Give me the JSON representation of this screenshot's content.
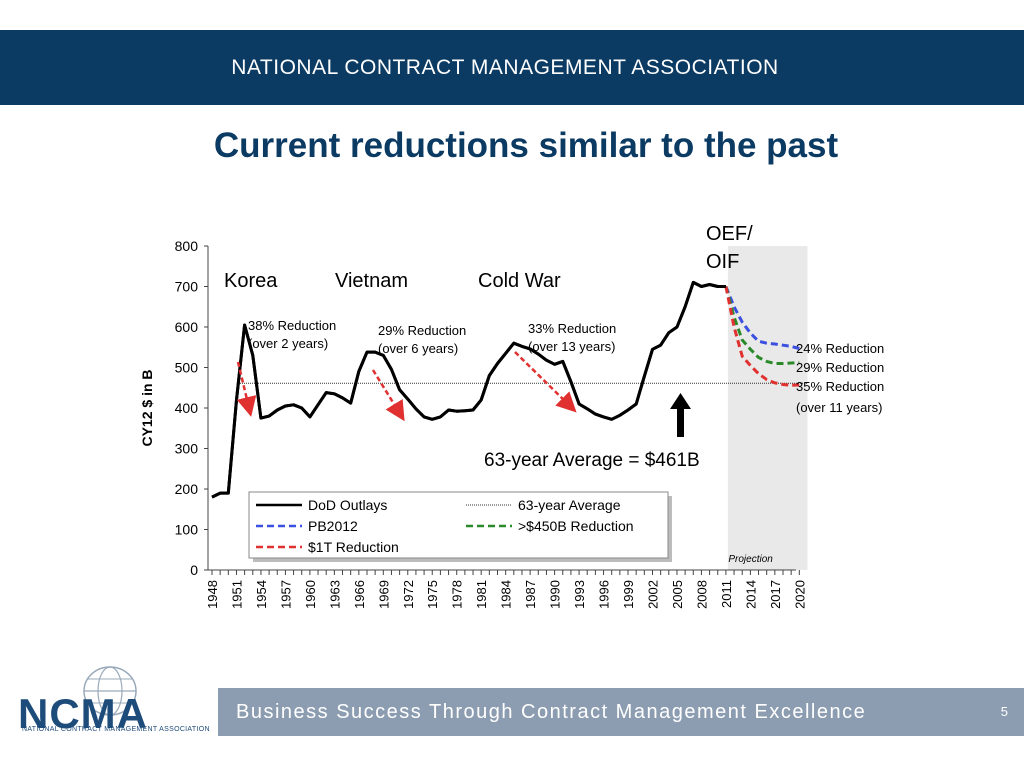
{
  "header": {
    "title": "NATIONAL CONTRACT MANAGEMENT ASSOCIATION"
  },
  "slide": {
    "title": "Current reductions similar to the past"
  },
  "footer": {
    "tagline": "Business Success Through Contract Management Excellence",
    "page_number": "5"
  },
  "logo": {
    "text": "NCMA",
    "subtitle": "NATIONAL CONTRACT MANAGEMENT ASSOCIATION"
  },
  "colors": {
    "brand_navy": "#0b3a63",
    "footer_gray": "#8d9db1",
    "dod": "#000000",
    "pb2012": "#3b4fe0",
    "reduction450": "#2a8a2a",
    "reduction1t": "#e03030",
    "projection_bg": "#e9e9e9"
  },
  "chart_data": {
    "type": "line",
    "ylabel": "CY12 $ in B",
    "ylim": [
      0,
      800
    ],
    "yticks": [
      0,
      100,
      200,
      300,
      400,
      500,
      600,
      700,
      800
    ],
    "xlim": [
      1948,
      2021
    ],
    "xticks": [
      1948,
      1951,
      1954,
      1957,
      1960,
      1963,
      1966,
      1969,
      1972,
      1975,
      1978,
      1981,
      1984,
      1987,
      1990,
      1993,
      1996,
      1999,
      2002,
      2005,
      2008,
      2011,
      2014,
      2017,
      2020
    ],
    "projection_label": "Projection",
    "projection_range": [
      2011,
      2021
    ],
    "average": {
      "name": "63-year Average",
      "value": 461,
      "annotation": "63-year Average = $461B"
    },
    "series": [
      {
        "name": "DoD Outlays",
        "style": "solid",
        "x": [
          1948,
          1949,
          1950,
          1951,
          1952,
          1953,
          1954,
          1955,
          1956,
          1957,
          1958,
          1959,
          1960,
          1961,
          1962,
          1963,
          1964,
          1965,
          1966,
          1967,
          1968,
          1969,
          1970,
          1971,
          1972,
          1973,
          1974,
          1975,
          1976,
          1977,
          1978,
          1979,
          1980,
          1981,
          1982,
          1983,
          1984,
          1985,
          1986,
          1987,
          1988,
          1989,
          1990,
          1991,
          1992,
          1993,
          1994,
          1995,
          1996,
          1997,
          1998,
          1999,
          2000,
          2001,
          2002,
          2003,
          2004,
          2005,
          2006,
          2007,
          2008,
          2009,
          2010,
          2011
        ],
        "y": [
          180,
          190,
          190,
          420,
          605,
          530,
          375,
          380,
          395,
          405,
          408,
          400,
          378,
          408,
          438,
          435,
          425,
          412,
          490,
          538,
          538,
          530,
          495,
          445,
          422,
          398,
          378,
          372,
          378,
          395,
          392,
          393,
          395,
          420,
          480,
          510,
          535,
          560,
          552,
          546,
          533,
          518,
          508,
          515,
          465,
          410,
          398,
          385,
          378,
          372,
          382,
          395,
          410,
          478,
          545,
          555,
          586,
          600,
          650,
          710,
          700,
          705,
          700,
          700
        ]
      },
      {
        "name": "PB2012",
        "style": "dashed",
        "x": [
          2011,
          2012,
          2013,
          2014,
          2015,
          2016,
          2017,
          2018,
          2019,
          2020
        ],
        "y": [
          700,
          650,
          612,
          585,
          565,
          560,
          558,
          555,
          552,
          547
        ]
      },
      {
        "name": ">$450B Reduction",
        "style": "dashed",
        "x": [
          2011,
          2012,
          2013,
          2014,
          2015,
          2016,
          2017,
          2018,
          2019,
          2020
        ],
        "y": [
          700,
          625,
          568,
          545,
          525,
          515,
          510,
          510,
          511,
          512
        ]
      },
      {
        "name": "$1T Reduction",
        "style": "dashed",
        "x": [
          2011,
          2012,
          2013,
          2014,
          2015,
          2016,
          2017,
          2018,
          2019,
          2020
        ],
        "y": [
          700,
          600,
          528,
          505,
          485,
          470,
          462,
          458,
          456,
          457
        ]
      }
    ],
    "annotations": {
      "eras": [
        "Korea",
        "Vietnam",
        "Cold War",
        "OEF/ OIF"
      ],
      "reductions": [
        {
          "text": "38% Reduction",
          "sub": "(over 2 years)"
        },
        {
          "text": "29% Reduction",
          "sub": "(over 6 years)"
        },
        {
          "text": "33% Reduction",
          "sub": "(over 13 years)"
        }
      ],
      "projections": [
        "24% Reduction",
        "29% Reduction",
        "35% Reduction",
        "(over 11 years)"
      ]
    }
  }
}
